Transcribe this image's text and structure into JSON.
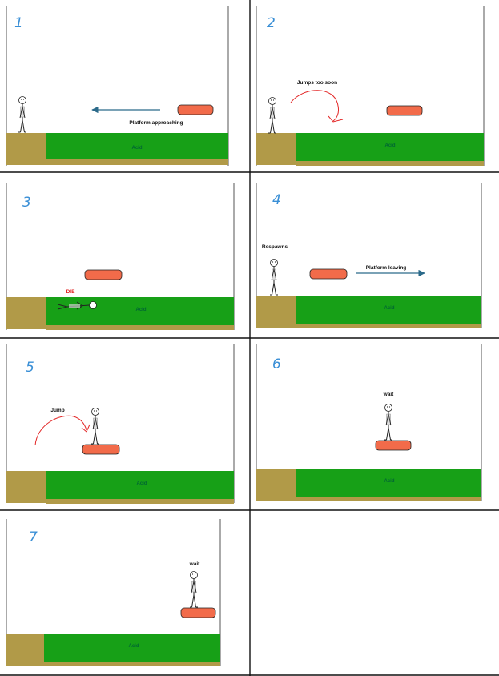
{
  "panels": [
    {
      "number": "1",
      "labels": {
        "caption": "Platform approaching",
        "acid": "Acid"
      }
    },
    {
      "number": "2",
      "labels": {
        "caption": "Jumps too soon",
        "acid": "Acid"
      }
    },
    {
      "number": "3",
      "labels": {
        "caption": "DIE",
        "acid": "Acid"
      }
    },
    {
      "number": "4",
      "labels": {
        "caption": "Respawns",
        "caption2": "Platform leaving",
        "acid": "Acid"
      }
    },
    {
      "number": "5",
      "labels": {
        "caption": "Jump",
        "acid": "Acid"
      }
    },
    {
      "number": "6",
      "labels": {
        "caption": "wait",
        "acid": "Acid"
      }
    },
    {
      "number": "7",
      "labels": {
        "caption": "wait",
        "acid": "Acid"
      }
    }
  ],
  "colors": {
    "acid": "#17a017",
    "ground": "#b19a48",
    "platform": "#f26b4a",
    "grid": "#111111",
    "number": "#3a8fd6",
    "jump_arrow": "#e32727",
    "move_arrow": "#2b6a8a",
    "die_text": "#e0201f"
  },
  "icons": [
    "stick-figure-icon",
    "dead-stick-figure-icon",
    "curved-arrow-icon",
    "straight-arrow-icon"
  ]
}
